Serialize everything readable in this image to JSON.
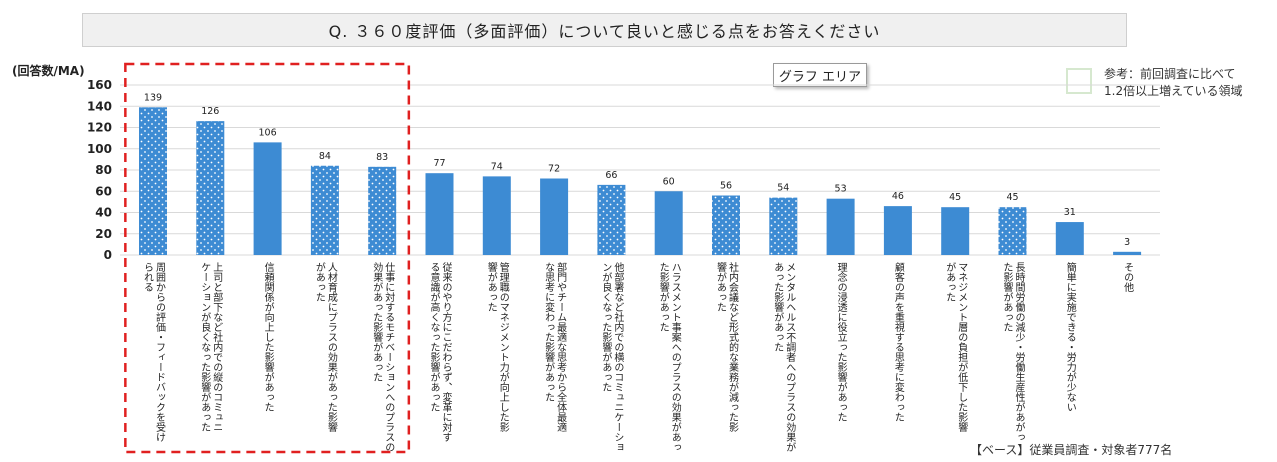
{
  "title": "Q. ３６０度評価（多面評価）について良いと感じる点をお答えください",
  "graph_area_label": "グラフ エリア",
  "legend": {
    "line1": "参考：前回調査に比べて",
    "line2": "1.2倍以上増えている領域",
    "swatch_color": "#d6e8cf"
  },
  "base_note": "【ベース】従業員調査・対象者777名",
  "colors": {
    "bar": "#3d8bd3",
    "dots": "#ffffff",
    "highlight_border": "#e02020",
    "grid": "#d9d9d9"
  },
  "chart_data": {
    "type": "bar",
    "title": "Q. ３６０度評価（多面評価）について良いと感じる点をお答えください",
    "ylabel": "(回答数/MA)",
    "xlabel": "",
    "ylim": [
      0,
      160
    ],
    "yticks": [
      0,
      20,
      40,
      60,
      80,
      100,
      120,
      140,
      160
    ],
    "grid": true,
    "categories": [
      "周囲からの評価・フィードバックを受けられる",
      "上司と部下など社内での縦のコミュニケーションが良くなった影響があった",
      "信頼関係が向上した影響があった",
      "人材育成にプラスの効果があった影響があった",
      "仕事に対するモチベーションへのプラスの効果があった影響があった",
      "従来のやり方にこだわらず、変革に対する意識が高くなった影響があった",
      "管理職のマネジメント力が向上した影響があった",
      "部門やチーム最適な思考から全体最適な思考に変わった影響があった",
      "他部署など社内での横のコミュニケーションが良くなった影響があった",
      "ハラスメント事案へのプラスの効果があった影響があった",
      "社内会議など形式的な業務が減った影響があった",
      "メンタルヘルス不調者へのプラスの効果があった影響があった",
      "理念の浸透に役立った影響があった",
      "顧客の声を重視する思考に変わった",
      "マネジメント層の負担が低下した影響があった",
      "長時間労働の減少・労働生産性があがった影響があった",
      "簡単に実施できる・労力が少ない",
      "その他"
    ],
    "label_lines": [
      [
        "周囲からの評価・フィードバックを受け",
        "られる"
      ],
      [
        "上司と部下など社内での縦のコミュニ",
        "ケーションが良くなった影響があった"
      ],
      [
        "信頼関係が向上した影響があった"
      ],
      [
        "人材育成にプラスの効果があった影響",
        "があった"
      ],
      [
        "仕事に対するモチベーションへのプラスの",
        "効果があった影響があった"
      ],
      [
        "従来のやり方にこだわらず、変革に対す",
        "る意識が高くなった影響があった"
      ],
      [
        "管理職のマネジメント力が向上した影",
        "響があった"
      ],
      [
        "部門やチーム最適な思考から全体最適",
        "な思考に変わった影響があった"
      ],
      [
        "他部署など社内での横のコミュニケーショ",
        "ンが良くなった影響があった"
      ],
      [
        "ハラスメント事案へのプラスの効果があっ",
        "た影響があった"
      ],
      [
        "社内会議など形式的な業務が減った影",
        "響があった"
      ],
      [
        "メンタルヘルス不調者へのプラスの効果が",
        "あった影響があった"
      ],
      [
        "理念の浸透に役立った影響があった"
      ],
      [
        "顧客の声を重視する思考に変わった"
      ],
      [
        "マネジメント層の負担が低下した影響",
        "があった"
      ],
      [
        "長時間労働の減少・労働生産性があがっ",
        "た影響があった"
      ],
      [
        "簡単に実施できる・労力が少ない"
      ],
      [
        "その他"
      ]
    ],
    "values": [
      139,
      126,
      106,
      84,
      83,
      77,
      74,
      72,
      66,
      60,
      56,
      54,
      53,
      46,
      45,
      45,
      31,
      3
    ],
    "increased_1_2x": [
      true,
      true,
      false,
      true,
      true,
      false,
      false,
      false,
      true,
      false,
      true,
      true,
      false,
      false,
      false,
      true,
      false,
      false
    ],
    "highlighted_range": [
      0,
      4
    ]
  }
}
